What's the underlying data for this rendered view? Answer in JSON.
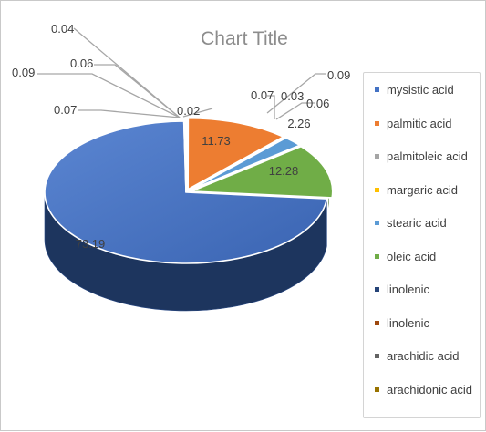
{
  "chart_data": {
    "type": "pie",
    "style": "3d",
    "title": "Chart Title",
    "legend_position": "right",
    "legend": [
      {
        "label": "mysistic acid",
        "color": "#4472c4"
      },
      {
        "label": "palmitic acid",
        "color": "#ed7d31"
      },
      {
        "label": "palmitoleic acid",
        "color": "#a5a5a5"
      },
      {
        "label": "margaric acid",
        "color": "#ffc000"
      },
      {
        "label": "stearic acid",
        "color": "#5b9bd5"
      },
      {
        "label": "oleic acid",
        "color": "#70ad47"
      },
      {
        "label": "linolenic",
        "color": "#264478"
      },
      {
        "label": "linolenic",
        "color": "#9e480e"
      },
      {
        "label": "arachidic acid",
        "color": "#636363"
      },
      {
        "label": "arachidonic acid",
        "color": "#997300"
      }
    ],
    "values": [
      0.02,
      11.73,
      0.07,
      0.03,
      2.26,
      12.28,
      73.19,
      0.09,
      0.09,
      0.06
    ],
    "colors": [
      "#4472c4",
      "#ed7d31",
      "#a5a5a5",
      "#ffc000",
      "#5b9bd5",
      "#70ad47",
      "#2f5597",
      "#9e480e",
      "#636363",
      "#997300"
    ],
    "data_labels": [
      "0.02",
      "11.73",
      "0.07",
      "0.03",
      "2.26",
      "12.28",
      "73.19",
      "0.09",
      "0.09",
      "0.06"
    ],
    "extra_labels": [
      "0.04",
      "0.06",
      "0.09",
      "0.07"
    ]
  }
}
